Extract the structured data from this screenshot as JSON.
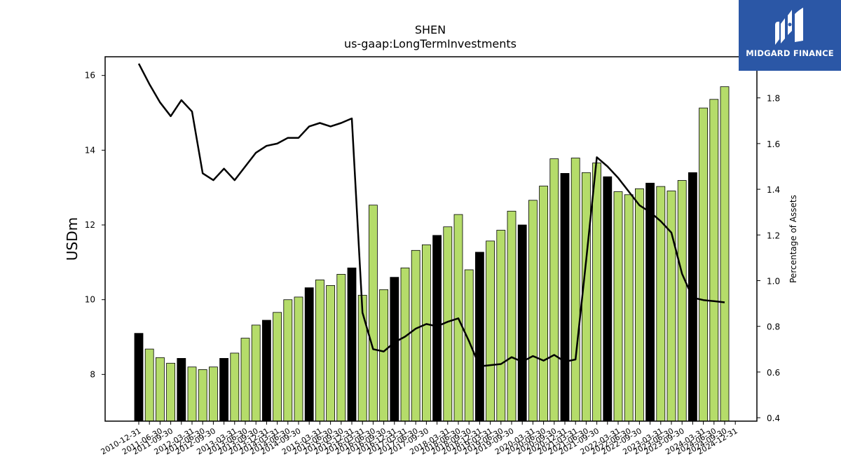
{
  "brand": {
    "name": "MIDGARD FINANCE",
    "logo_icon": "midgard-m-logo-icon",
    "bg_color": "#2b57a6"
  },
  "chart_data": {
    "type": "bar",
    "title": "SHEN",
    "subtitle": "us-gaap:LongTermInvestments",
    "ylabel": "USDm",
    "y2label": "Percentage of Assets",
    "ylim": [
      6.75,
      16.5
    ],
    "y2lim": [
      0.385,
      1.98
    ],
    "yticks": [
      8,
      10,
      12,
      14,
      16
    ],
    "y2ticks": [
      0.4,
      0.6,
      0.8,
      1.0,
      1.2,
      1.4,
      1.6,
      1.8
    ],
    "bar_colors": {
      "year_end": "#000000",
      "quarter": "#b5dc6a"
    },
    "line_color": "#000000",
    "grid": false,
    "categories": [
      "2010-12-31",
      "2011-03-31",
      "2011-06-30",
      "2011-09-30",
      "2011-12-31",
      "2012-03-31",
      "2012-06-30",
      "2012-09-30",
      "2012-12-31",
      "2013-03-31",
      "2013-06-30",
      "2013-09-30",
      "2013-12-31",
      "2014-03-31",
      "2014-06-30",
      "2014-09-30",
      "2014-12-31",
      "2015-03-31",
      "2015-06-30",
      "2015-09-30",
      "2015-12-31",
      "2016-03-31",
      "2016-06-30",
      "2016-09-30",
      "2016-12-31",
      "2017-03-31",
      "2017-06-30",
      "2017-09-30",
      "2017-12-31",
      "2018-03-31",
      "2018-06-30",
      "2018-09-30",
      "2018-12-31",
      "2019-03-31",
      "2019-06-30",
      "2019-09-30",
      "2019-12-31",
      "2020-03-31",
      "2020-06-30",
      "2020-09-30",
      "2020-12-31",
      "2021-03-31",
      "2021-06-30",
      "2021-09-30",
      "2021-12-31",
      "2022-03-31",
      "2022-06-30",
      "2022-09-30",
      "2022-12-31",
      "2023-03-31",
      "2023-06-30",
      "2023-09-30",
      "2023-12-31",
      "2024-03-31",
      "2024-06-30",
      "2024-09-30",
      "2024-12-31"
    ],
    "visible_xtick_labels": [
      "2010-12-31",
      "2011-06-30",
      "2011-09-30",
      "2012-03-31",
      "2012-06-30",
      "2012-09-30",
      "2013-03-31",
      "2013-06-30",
      "2013-09-30",
      "2013-12-31",
      "2014-03-31",
      "2014-06-30",
      "2014-09-30",
      "2015-03-31",
      "2015-06-30",
      "2015-09-30",
      "2015-12-31",
      "2016-03-31",
      "2016-06-30",
      "2016-09-30",
      "2016-12-31",
      "2017-03-31",
      "2017-06-30",
      "2017-09-30",
      "2018-03-31",
      "2018-06-30",
      "2018-09-30",
      "2018-12-31",
      "2019-03-31",
      "2019-06-30",
      "2019-09-30",
      "2020-03-31",
      "2020-06-30",
      "2020-09-30",
      "2020-12-31",
      "2021-03-31",
      "2021-06-30",
      "2021-09-30",
      "2022-03-31",
      "2022-06-30",
      "2022-09-30",
      "2023-03-31",
      "2023-06-30",
      "2023-09-30",
      "2024-03-31",
      "2024-06-30",
      "2024-09-30",
      "2024-12-31"
    ],
    "series": [
      {
        "name": "USDm",
        "type": "bar",
        "values": [
          9.1,
          8.68,
          8.45,
          8.3,
          8.43,
          8.2,
          8.13,
          8.2,
          8.43,
          8.57,
          8.97,
          9.32,
          9.45,
          9.66,
          10.0,
          10.07,
          10.32,
          10.53,
          10.38,
          10.68,
          10.85,
          10.12,
          12.53,
          10.27,
          10.6,
          10.85,
          11.32,
          11.47,
          11.72,
          11.95,
          12.28,
          10.8,
          11.27,
          11.57,
          11.86,
          12.37,
          12.0,
          12.66,
          13.04,
          13.77,
          13.38,
          13.79,
          13.4,
          13.66,
          13.29,
          12.89,
          12.81,
          12.97,
          13.12,
          13.03,
          12.91,
          13.19,
          13.4,
          15.13,
          15.36,
          15.7,
          null
        ]
      },
      {
        "name": "Percentage of Assets",
        "type": "line",
        "values": [
          1.95,
          1.86,
          1.78,
          1.72,
          1.79,
          1.74,
          1.47,
          1.44,
          1.49,
          1.44,
          1.5,
          1.56,
          1.59,
          1.6,
          1.625,
          1.625,
          1.675,
          1.69,
          1.675,
          1.69,
          1.71,
          0.86,
          0.7,
          0.69,
          0.73,
          0.755,
          0.79,
          0.81,
          0.8,
          0.82,
          0.835,
          0.735,
          0.625,
          0.63,
          0.635,
          0.665,
          0.645,
          0.67,
          0.65,
          0.675,
          0.645,
          0.655,
          1.09,
          1.54,
          1.5,
          1.45,
          1.39,
          1.33,
          1.3,
          1.26,
          1.21,
          1.03,
          0.925,
          0.915,
          0.91,
          0.905,
          null
        ]
      }
    ]
  }
}
